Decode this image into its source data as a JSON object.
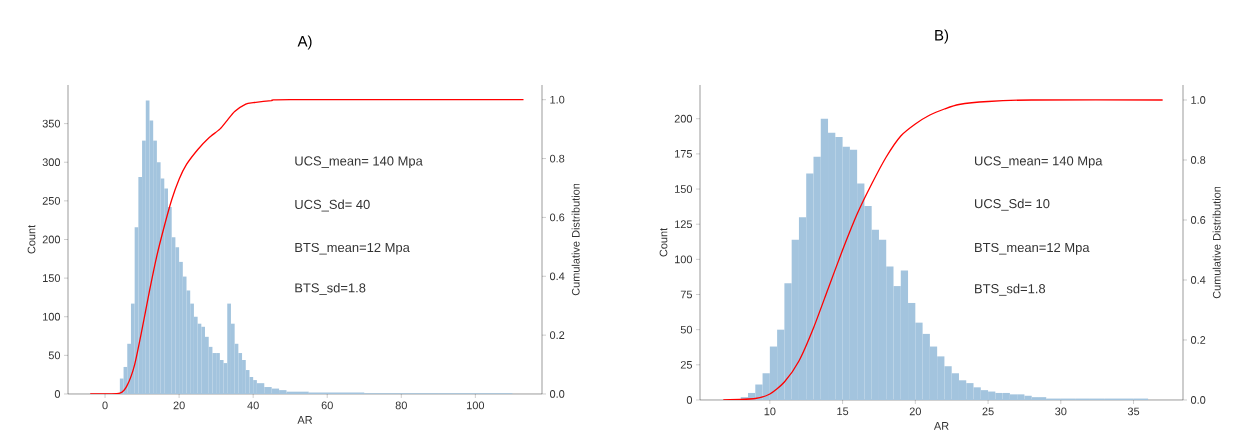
{
  "chart_data": [
    {
      "type": "histogram",
      "title": "A)",
      "xlabel": "AR",
      "ylabel": "Count",
      "y2label": "Cumulative Distribution",
      "xlim": [
        -10,
        118
      ],
      "ylim": [
        0,
        400
      ],
      "y2lim": [
        0,
        1.05
      ],
      "xticks": [
        0,
        20,
        40,
        60,
        80,
        100
      ],
      "yticks": [
        0,
        50,
        100,
        150,
        200,
        250,
        300,
        350
      ],
      "y2ticks": [
        {
          "value": 0,
          "label": "0.0"
        },
        {
          "value": 0.2,
          "label": "0.2"
        },
        {
          "value": 0.4,
          "label": "0.4"
        },
        {
          "value": 0.6,
          "label": "0.6"
        },
        {
          "value": 0.8,
          "label": "0.8"
        },
        {
          "value": 1,
          "label": "1.0"
        }
      ],
      "annotations": [
        "UCS_mean= 140 Mpa",
        "UCS_Sd= 40",
        "BTS_mean=12 Mpa",
        "BTS_sd=1.8"
      ],
      "series": [
        {
          "color": "#a3c4de",
          "bins": [
            4,
            5,
            6,
            7,
            8,
            9,
            10,
            11,
            12,
            13,
            14,
            15,
            16,
            17,
            18,
            19,
            20,
            21,
            22,
            23,
            24,
            25,
            26,
            27,
            28,
            29,
            30,
            31,
            32,
            33,
            34,
            35,
            36,
            37,
            38,
            39,
            40,
            41,
            43,
            45,
            47,
            49,
            55,
            70,
            90,
            110
          ],
          "values": [
            20,
            35,
            65,
            117,
            216,
            281,
            328,
            380,
            354,
            328,
            300,
            279,
            266,
            242,
            203,
            190,
            171,
            152,
            134,
            117,
            100,
            91,
            87,
            74,
            61,
            53,
            53,
            44,
            40,
            117,
            91,
            65,
            53,
            44,
            31,
            22,
            18,
            14,
            9,
            7,
            5,
            3,
            2,
            1,
            1
          ]
        },
        {
          "type": "line",
          "axis": "y2",
          "color": "#ff0000",
          "x": [
            -4,
            4,
            6,
            8,
            10,
            12,
            14,
            16,
            18,
            20,
            22,
            25,
            28,
            31,
            33,
            35,
            38,
            40,
            45,
            50,
            113
          ],
          "values": [
            0,
            0.003,
            0.03,
            0.1,
            0.22,
            0.35,
            0.47,
            0.57,
            0.66,
            0.73,
            0.78,
            0.83,
            0.87,
            0.9,
            0.93,
            0.96,
            0.985,
            0.99,
            0.997,
            1,
            1
          ]
        }
      ]
    },
    {
      "type": "histogram",
      "title": "B)",
      "xlabel": "AR",
      "ylabel": "Count",
      "y2label": "Cumulative Distribution",
      "xlim": [
        5.2,
        38.4
      ],
      "ylim": [
        0,
        224
      ],
      "y2lim": [
        0,
        1.05
      ],
      "xticks": [
        10,
        15,
        20,
        25,
        30,
        35
      ],
      "yticks": [
        0,
        25,
        50,
        75,
        100,
        125,
        150,
        175,
        200
      ],
      "y2ticks": [
        {
          "value": 0,
          "label": "0.0"
        },
        {
          "value": 0.2,
          "label": "0.2"
        },
        {
          "value": 0.4,
          "label": "0.4"
        },
        {
          "value": 0.6,
          "label": "0.6"
        },
        {
          "value": 0.8,
          "label": "0.8"
        },
        {
          "value": 1,
          "label": "1.0"
        }
      ],
      "annotations": [
        "UCS_mean= 140 Mpa",
        "UCS_Sd= 10",
        "BTS_mean=12 Mpa",
        "BTS_sd=1.8"
      ],
      "series": [
        {
          "color": "#a3c4de",
          "bins": [
            8,
            8.5,
            9,
            9.5,
            10,
            10.5,
            11,
            11.5,
            12,
            12.5,
            13,
            13.5,
            14,
            14.5,
            15,
            15.5,
            16,
            16.5,
            17,
            17.5,
            18,
            18.5,
            19,
            19.5,
            20,
            20.5,
            21,
            21.5,
            22,
            22.5,
            23,
            23.5,
            24,
            24.5,
            25,
            25.5,
            26,
            26.5,
            27,
            27.5,
            28,
            28.5,
            29,
            30,
            31,
            32,
            33,
            34,
            35,
            36
          ],
          "values": [
            2,
            5,
            11,
            19,
            38,
            50,
            83,
            114,
            130,
            161,
            173,
            200,
            190,
            187,
            180,
            178,
            154,
            138,
            121,
            114,
            95,
            81,
            92,
            69,
            55,
            47,
            38,
            31,
            24,
            19,
            14,
            12,
            9,
            7,
            6,
            5,
            5,
            4,
            4,
            3,
            2,
            2,
            1,
            1,
            1,
            1,
            1,
            1,
            1
          ]
        },
        {
          "type": "line",
          "axis": "y2",
          "color": "#ff0000",
          "x": [
            6.8,
            9,
            10,
            11,
            12,
            13,
            14,
            15,
            16,
            17,
            18,
            19,
            20,
            21,
            22,
            23,
            25,
            28,
            37
          ],
          "values": [
            0,
            0.005,
            0.02,
            0.06,
            0.13,
            0.24,
            0.37,
            0.5,
            0.62,
            0.72,
            0.81,
            0.88,
            0.92,
            0.95,
            0.97,
            0.985,
            0.995,
            1,
            1
          ]
        }
      ]
    }
  ]
}
